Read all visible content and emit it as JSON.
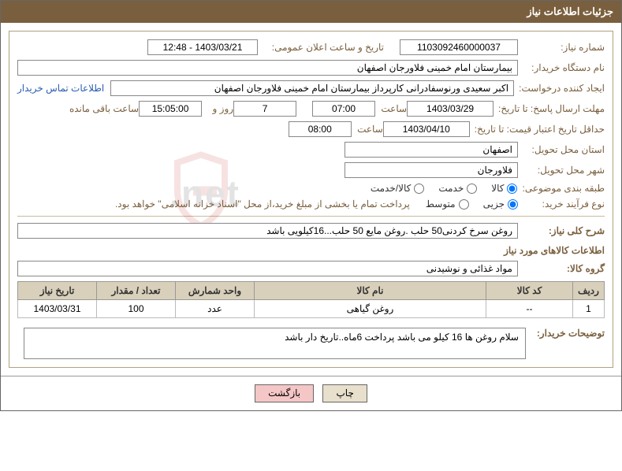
{
  "header": {
    "title": "جزئیات اطلاعات نیاز"
  },
  "fields": {
    "need_number_label": "شماره نیاز:",
    "need_number": "1103092460000037",
    "announce_datetime_label": "تاریخ و ساعت اعلان عمومی:",
    "announce_datetime": "1403/03/21 - 12:48",
    "buyer_org_label": "نام دستگاه خریدار:",
    "buyer_org": "بیمارستان امام خمینی فلاورجان اصفهان",
    "requester_label": "ایجاد کننده درخواست:",
    "requester": "اکبر سعیدی ورنوسفادرانی کارپرداز بیمارستان امام خمینی فلاورجان اصفهان",
    "buyer_contact_link": "اطلاعات تماس خریدار",
    "reply_deadline_label": "مهلت ارسال پاسخ: تا تاریخ:",
    "reply_deadline_date": "1403/03/29",
    "time_label": "ساعت",
    "reply_deadline_time": "07:00",
    "remaining_days": "7",
    "days_and_label": "روز و",
    "remaining_time": "15:05:00",
    "remaining_suffix": "ساعت باقی مانده",
    "price_validity_label": "حداقل تاریخ اعتبار قیمت: تا تاریخ:",
    "price_validity_date": "1403/04/10",
    "price_validity_time": "08:00",
    "delivery_province_label": "استان محل تحویل:",
    "delivery_province": "اصفهان",
    "delivery_city_label": "شهر محل تحویل:",
    "delivery_city": "فلاورجان",
    "category_label": "طبقه بندی موضوعی:",
    "radio_goods": "کالا",
    "radio_service": "خدمت",
    "radio_goods_service": "کالا/خدمت",
    "purchase_type_label": "نوع فرآیند خرید:",
    "radio_minor": "جزیی",
    "radio_medium": "متوسط",
    "payment_note": "پرداخت تمام یا بخشی از مبلغ خرید،از محل \"اسناد خزانه اسلامی\" خواهد بود.",
    "need_desc_label": "شرح کلی نیاز:",
    "need_desc": "روغن سرخ کردنی50 حلب .روغن مایع 50 حلب...16کیلویی باشد",
    "items_info_label": "اطلاعات کالاهای مورد نیاز",
    "goods_group_label": "گروه کالا:",
    "goods_group": "مواد غذائی و نوشیدنی",
    "buyer_comment_label": "توضیحات خریدار:",
    "buyer_comment": "سلام روغن ها 16 کیلو می باشد پرداخت 6ماه..تاریخ دار باشد"
  },
  "table": {
    "headers": {
      "row": "ردیف",
      "code": "کد کالا",
      "name": "نام کالا",
      "unit": "واحد شمارش",
      "qty": "تعداد / مقدار",
      "date": "تاریخ نیاز"
    },
    "rows": [
      {
        "row": "1",
        "code": "--",
        "name": "روغن گیاهی",
        "unit": "عدد",
        "qty": "100",
        "date": "1403/03/31"
      }
    ]
  },
  "buttons": {
    "print": "چاپ",
    "back": "بازگشت"
  },
  "colors": {
    "header_bg": "#7a5f3e",
    "border": "#b0a080",
    "table_header_bg": "#d9d0bb",
    "link": "#2a5db0"
  }
}
